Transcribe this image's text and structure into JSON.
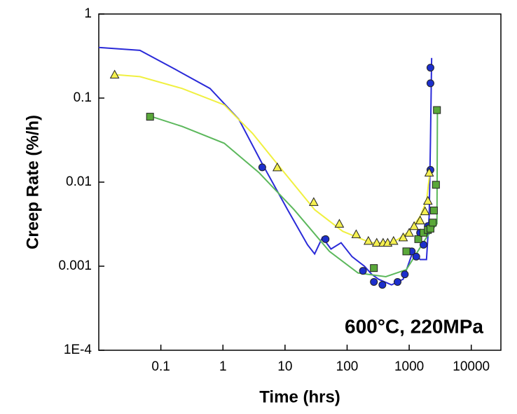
{
  "chart_data": {
    "type": "line",
    "x_label": "Time (hrs)",
    "y_label": "Creep Rate (%/h)",
    "annotation": "600°C, 220MPa",
    "xscale": "log",
    "yscale": "log",
    "xlim": [
      0.01,
      30000
    ],
    "ylim": [
      0.0001,
      1
    ],
    "xticks": [
      0.1,
      1,
      10,
      100,
      1000,
      10000
    ],
    "yticks": [
      {
        "value": 0.0001,
        "label": "1E-4"
      },
      0.001,
      0.01,
      0.1,
      1
    ],
    "series": [
      {
        "color": "#2a2ad8",
        "style": "line",
        "x": [
          0.01,
          0.046,
          0.17,
          0.62,
          1.8,
          4.4,
          11,
          23,
          30,
          40,
          55,
          80,
          120,
          190,
          250,
          320,
          520,
          800,
          1150,
          1500,
          1900,
          2100,
          2200,
          2300
        ],
        "values": [
          0.4,
          0.37,
          0.22,
          0.13,
          0.056,
          0.016,
          0.0047,
          0.0018,
          0.0014,
          0.0022,
          0.0016,
          0.0019,
          0.0013,
          0.001,
          0.0008,
          0.0007,
          0.0006,
          0.0007,
          0.0015,
          0.0012,
          0.0012,
          0.004,
          0.03,
          0.3
        ]
      },
      {
        "color": "#f0f040",
        "style": "line",
        "x": [
          0.018,
          0.046,
          0.22,
          1.05,
          3,
          8.3,
          30,
          85,
          240,
          500,
          670,
          1000,
          1500,
          1900,
          2200
        ],
        "values": [
          0.19,
          0.18,
          0.13,
          0.083,
          0.038,
          0.015,
          0.0047,
          0.0026,
          0.0019,
          0.0019,
          0.0021,
          0.0026,
          0.0039,
          0.006,
          0.015
        ]
      },
      {
        "color": "#5cb85c",
        "style": "line",
        "x": [
          0.063,
          0.22,
          1.05,
          3.8,
          14,
          52,
          150,
          420,
          900,
          1900,
          2800,
          2850
        ],
        "values": [
          0.062,
          0.046,
          0.029,
          0.013,
          0.0047,
          0.0015,
          0.00083,
          0.00075,
          0.00091,
          0.0022,
          0.0032,
          0.075
        ]
      },
      {
        "color": "#1c2fcc",
        "style": "circle",
        "x": [
          4.3,
          45,
          180,
          270,
          370,
          650,
          850,
          1100,
          1300,
          1500,
          1700,
          2000,
          2200,
          2200,
          2200
        ],
        "values": [
          0.015,
          0.0021,
          0.00088,
          0.00065,
          0.0006,
          0.00065,
          0.0008,
          0.0015,
          0.0013,
          0.0025,
          0.0018,
          0.003,
          0.014,
          0.15,
          0.23
        ]
      },
      {
        "color": "#f5f050",
        "style": "triangle",
        "x": [
          0.018,
          7.5,
          29,
          75,
          140,
          220,
          300,
          380,
          450,
          560,
          800,
          1000,
          1200,
          1500,
          1800,
          2000,
          2100
        ],
        "values": [
          0.19,
          0.015,
          0.0058,
          0.0032,
          0.0024,
          0.002,
          0.0019,
          0.0019,
          0.0019,
          0.002,
          0.0022,
          0.0025,
          0.003,
          0.0035,
          0.0045,
          0.006,
          0.013
        ]
      },
      {
        "color": "#5aa83a",
        "style": "square",
        "x": [
          0.067,
          270,
          900,
          1400,
          1700,
          2000,
          2200,
          2400,
          2500,
          2700,
          2800
        ],
        "values": [
          0.06,
          0.00095,
          0.0015,
          0.0021,
          0.0025,
          0.0027,
          0.0028,
          0.0033,
          0.0046,
          0.0093,
          0.072
        ]
      }
    ]
  }
}
